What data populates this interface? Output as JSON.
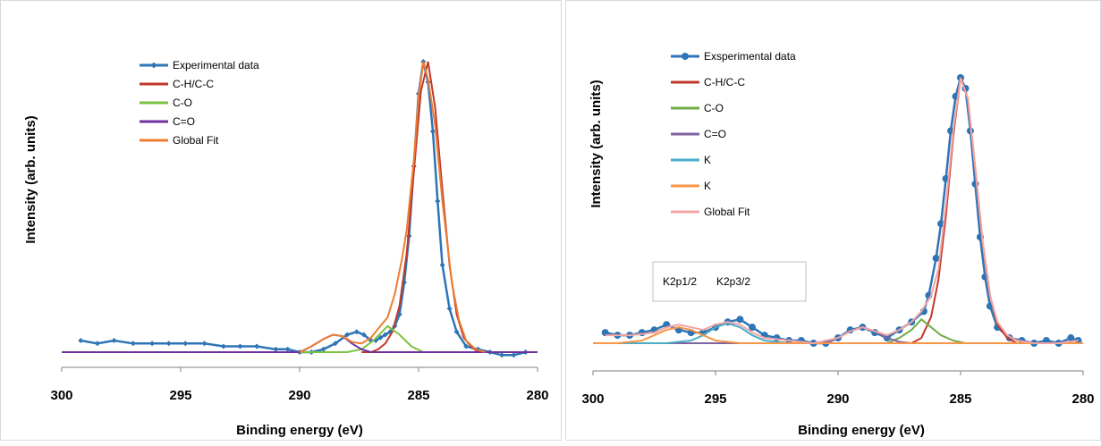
{
  "chart_data": [
    {
      "type": "line",
      "title": "",
      "xlabel": "Binding  energy (eV)",
      "ylabel": "Intensity (arb. units)",
      "xlim": [
        300,
        280
      ],
      "x_reversed": true,
      "x_ticks": [
        "300",
        "295",
        "290",
        "285",
        "280"
      ],
      "grid": false,
      "legend_position": "top-left",
      "series": [
        {
          "name": "Experimental data",
          "color": "#2e75b6",
          "marker": "diamond",
          "x": [
            299.2,
            298.5,
            297.8,
            297.0,
            296.2,
            295.5,
            294.8,
            294.0,
            293.2,
            292.5,
            291.8,
            291.0,
            290.5,
            290.0,
            289.5,
            289.0,
            288.5,
            288.0,
            287.6,
            287.3,
            287.0,
            286.8,
            286.6,
            286.4,
            286.2,
            286.0,
            285.8,
            285.6,
            285.4,
            285.2,
            285.0,
            284.8,
            284.6,
            284.4,
            284.2,
            284.0,
            283.7,
            283.4,
            283.0,
            282.5,
            282.0,
            281.5,
            281.0,
            280.5
          ],
          "y": [
            0.04,
            0.03,
            0.04,
            0.03,
            0.03,
            0.03,
            0.03,
            0.03,
            0.02,
            0.02,
            0.02,
            0.01,
            0.01,
            0.0,
            0.0,
            0.01,
            0.03,
            0.06,
            0.07,
            0.06,
            0.04,
            0.04,
            0.05,
            0.06,
            0.07,
            0.09,
            0.13,
            0.24,
            0.4,
            0.64,
            0.89,
            1.0,
            0.93,
            0.76,
            0.52,
            0.3,
            0.15,
            0.07,
            0.02,
            0.01,
            0.0,
            -0.01,
            -0.01,
            0.0
          ]
        },
        {
          "name": "C-H/C-C",
          "color": "#c0392b",
          "x": [
            287.4,
            287.0,
            286.7,
            286.4,
            286.1,
            285.8,
            285.5,
            285.2,
            284.9,
            284.6,
            284.3,
            284.0,
            283.7,
            283.4,
            283.1,
            282.8,
            282.5
          ],
          "y": [
            0.0,
            0.0,
            0.01,
            0.03,
            0.07,
            0.16,
            0.34,
            0.62,
            0.9,
            1.0,
            0.84,
            0.56,
            0.3,
            0.13,
            0.05,
            0.02,
            0.0
          ]
        },
        {
          "name": "C-O",
          "color": "#7cc242",
          "x": [
            300.0,
            290.0,
            288.0,
            287.4,
            286.9,
            286.3,
            285.8,
            285.3,
            284.8,
            284.0,
            282.0,
            280.0
          ],
          "y": [
            0.0,
            0.0,
            0.0,
            0.01,
            0.04,
            0.09,
            0.06,
            0.02,
            0.0,
            0.0,
            0.0,
            0.0
          ]
        },
        {
          "name": "C=O",
          "color": "#7030a0",
          "x": [
            300.0,
            290.0,
            289.5,
            289.0,
            288.6,
            288.2,
            287.8,
            287.4,
            287.0,
            286.0,
            280.0
          ],
          "y": [
            0.0,
            0.0,
            0.02,
            0.045,
            0.06,
            0.055,
            0.03,
            0.01,
            0.0,
            0.0,
            0.0
          ]
        },
        {
          "name": "Global Fit",
          "color": "#ed7d31",
          "x": [
            290.0,
            289.5,
            289.0,
            288.6,
            288.2,
            287.8,
            287.4,
            287.0,
            286.8,
            286.6,
            286.3,
            286.0,
            285.7,
            285.5,
            285.2,
            285.0,
            284.8,
            284.6,
            284.3,
            284.0,
            283.6,
            283.3,
            283.0,
            282.6,
            282.2
          ],
          "y": [
            0.0,
            0.02,
            0.045,
            0.06,
            0.055,
            0.035,
            0.03,
            0.05,
            0.07,
            0.09,
            0.12,
            0.2,
            0.32,
            0.42,
            0.66,
            0.88,
            1.0,
            0.94,
            0.78,
            0.52,
            0.24,
            0.11,
            0.04,
            0.01,
            0.0
          ]
        }
      ]
    },
    {
      "type": "line",
      "title": "",
      "xlabel": "Binding energy (eV)",
      "ylabel": "Intensity (arb. units)",
      "xlim": [
        300,
        280
      ],
      "x_reversed": true,
      "x_ticks": [
        "300",
        "295",
        "290",
        "285",
        "280"
      ],
      "grid": false,
      "legend_position": "top-left",
      "annotation_box": [
        "K2p1/2",
        "K2p3/2"
      ],
      "series": [
        {
          "name": "Exsperimental data",
          "color": "#2e75b6",
          "marker": "circle",
          "x": [
            299.5,
            299.0,
            298.5,
            298.0,
            297.5,
            297.0,
            296.5,
            296.0,
            295.5,
            295.0,
            294.5,
            294.0,
            293.5,
            293.0,
            292.5,
            292.0,
            291.5,
            291.0,
            290.5,
            290.0,
            289.5,
            289.0,
            288.5,
            288.0,
            287.5,
            287.0,
            286.5,
            286.3,
            286.0,
            285.8,
            285.6,
            285.4,
            285.2,
            285.0,
            284.8,
            284.6,
            284.4,
            284.2,
            284.0,
            283.8,
            283.5,
            283.0,
            282.5,
            282.0,
            281.5,
            281.0,
            280.5,
            280.2
          ],
          "y": [
            0.04,
            0.03,
            0.03,
            0.04,
            0.05,
            0.07,
            0.05,
            0.04,
            0.04,
            0.06,
            0.08,
            0.09,
            0.06,
            0.03,
            0.02,
            0.01,
            0.01,
            0.0,
            0.0,
            0.02,
            0.05,
            0.06,
            0.04,
            0.02,
            0.05,
            0.08,
            0.12,
            0.18,
            0.32,
            0.45,
            0.62,
            0.8,
            0.93,
            1.0,
            0.96,
            0.8,
            0.6,
            0.4,
            0.25,
            0.14,
            0.06,
            0.02,
            0.01,
            0.0,
            0.01,
            0.0,
            0.02,
            0.01
          ]
        },
        {
          "name": "C-H/C-C",
          "color": "#c0392b",
          "x": [
            287.0,
            286.6,
            286.2,
            285.9,
            285.6,
            285.3,
            285.0,
            284.7,
            284.4,
            284.1,
            283.8,
            283.5,
            283.1,
            282.7
          ],
          "y": [
            0.0,
            0.02,
            0.1,
            0.24,
            0.48,
            0.78,
            1.0,
            0.92,
            0.66,
            0.38,
            0.18,
            0.07,
            0.02,
            0.0
          ]
        },
        {
          "name": "C-O",
          "color": "#70ad47",
          "x": [
            300.0,
            290.0,
            288.0,
            287.5,
            287.0,
            286.6,
            286.2,
            285.8,
            285.3,
            284.8,
            284.0,
            280.0
          ],
          "y": [
            0.0,
            0.0,
            0.0,
            0.02,
            0.05,
            0.09,
            0.06,
            0.03,
            0.01,
            0.0,
            0.0,
            0.0
          ]
        },
        {
          "name": "C=O",
          "color": "#8064a2",
          "x": [
            300.0,
            290.5,
            290.0,
            289.5,
            289.0,
            288.5,
            288.0,
            287.5,
            287.0,
            280.0
          ],
          "y": [
            0.0,
            0.0,
            0.02,
            0.045,
            0.06,
            0.045,
            0.02,
            0.005,
            0.0,
            0.0
          ]
        },
        {
          "name": "K",
          "color": "#4bacc6",
          "x": [
            300.0,
            297.0,
            296.0,
            295.5,
            295.0,
            294.5,
            294.0,
            293.5,
            293.0,
            292.0,
            280.0
          ],
          "y": [
            0.0,
            0.0,
            0.01,
            0.03,
            0.06,
            0.075,
            0.06,
            0.03,
            0.01,
            0.0,
            0.0
          ]
        },
        {
          "name": "K",
          "color": "#f79646",
          "x": [
            300.0,
            299.0,
            298.0,
            297.5,
            297.0,
            296.5,
            296.0,
            295.5,
            295.0,
            294.0,
            280.0
          ],
          "y": [
            0.0,
            0.0,
            0.01,
            0.03,
            0.05,
            0.06,
            0.05,
            0.03,
            0.01,
            0.0,
            0.0
          ]
        },
        {
          "name": "Global Fit",
          "color": "#f4a3a3",
          "x": [
            299.5,
            298.5,
            297.5,
            297.0,
            296.5,
            296.0,
            295.5,
            295.0,
            294.5,
            294.0,
            293.5,
            293.0,
            292.0,
            291.0,
            290.0,
            289.5,
            289.0,
            288.5,
            288.0,
            287.5,
            287.0,
            286.6,
            286.2,
            285.9,
            285.6,
            285.3,
            285.0,
            284.7,
            284.4,
            284.1,
            283.8,
            283.5,
            283.1,
            282.7,
            282.0,
            281.0,
            280.2
          ],
          "y": [
            0.03,
            0.03,
            0.04,
            0.06,
            0.07,
            0.06,
            0.05,
            0.07,
            0.08,
            0.07,
            0.04,
            0.02,
            0.01,
            0.0,
            0.02,
            0.045,
            0.06,
            0.045,
            0.03,
            0.05,
            0.08,
            0.12,
            0.18,
            0.28,
            0.52,
            0.8,
            1.0,
            0.92,
            0.66,
            0.38,
            0.18,
            0.08,
            0.03,
            0.01,
            0.0,
            0.0,
            0.01
          ]
        }
      ]
    }
  ]
}
